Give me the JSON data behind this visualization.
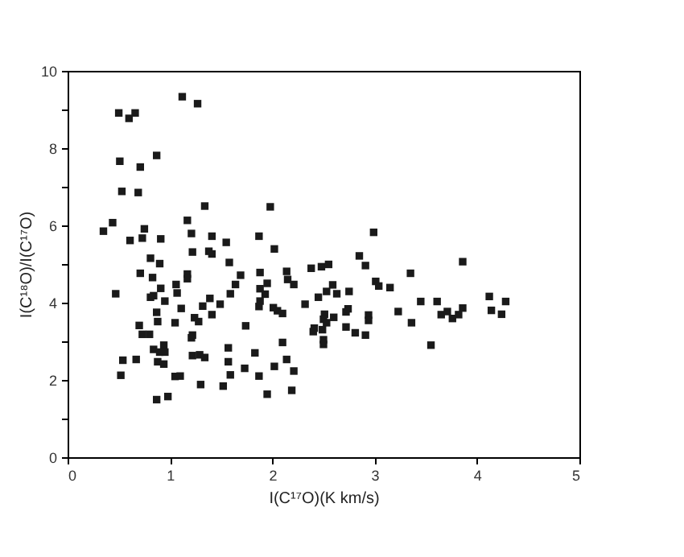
{
  "chart_data": {
    "type": "scatter",
    "xlabel": "I(C¹⁷O)(K km/s)",
    "ylabel": "I(C¹⁸O)/I(C¹⁷O)",
    "marker": "square",
    "grid": false,
    "legend": false,
    "xlim": [
      0,
      5
    ],
    "ylim": [
      0,
      10
    ],
    "xticks": [
      0,
      1,
      2,
      3,
      4,
      5
    ],
    "yticks": [
      0,
      {
        "value": 1,
        "label": null
      },
      2,
      {
        "value": 3,
        "label": null
      },
      4,
      {
        "value": 5,
        "label": null
      },
      6,
      {
        "value": 7,
        "label": null
      },
      8,
      {
        "value": 9,
        "label": null
      },
      10
    ],
    "series": [
      {
        "color": "#1a1a1a",
        "x": [
          0.5,
          0.6,
          0.66,
          1.12,
          1.27,
          0.51,
          0.71,
          0.87,
          0.53,
          0.69,
          1.34,
          0.35,
          0.44,
          0.75,
          0.61,
          0.73,
          0.91,
          1.17,
          1.21,
          1.41,
          1.22,
          1.38,
          1.41,
          1.55,
          1.58,
          0.81,
          0.9,
          0.71,
          0.83,
          1.17,
          1.17,
          1.06,
          0.91,
          1.07,
          0.47,
          0.84,
          0.81,
          0.95,
          1.39,
          1.32,
          1.49,
          1.59,
          1.64,
          1.69,
          1.11,
          0.87,
          0.88,
          1.41,
          1.24,
          1.28,
          1.05,
          0.7,
          0.73,
          0.8,
          1.21,
          1.22,
          1.57,
          0.84,
          0.94,
          0.9,
          0.95,
          0.88,
          0.94,
          0.54,
          0.67,
          1.22,
          1.29,
          1.34,
          1.57,
          0.52,
          1.05,
          1.1,
          1.59,
          1.3,
          1.52,
          0.87,
          0.98,
          1.98,
          1.87,
          2.02,
          1.88,
          1.95,
          1.88,
          1.93,
          1.88,
          1.87,
          2.01,
          2.05,
          2.1,
          2.14,
          2.15,
          2.21,
          2.32,
          2.38,
          2.48,
          2.55,
          2.45,
          2.53,
          2.59,
          2.63,
          2.75,
          2.85,
          2.91,
          2.99,
          3.01,
          3.04,
          3.15,
          3.23,
          2.51,
          2.5,
          2.53,
          2.6,
          2.72,
          2.74,
          2.72,
          2.41,
          2.4,
          2.49,
          2.81,
          2.91,
          2.94,
          2.94,
          2.5,
          2.5,
          1.74,
          2.1,
          1.83,
          2.14,
          1.73,
          2.02,
          1.87,
          2.21,
          1.95,
          2.19,
          3.35,
          3.45,
          3.36,
          3.55,
          3.61,
          3.65,
          3.71,
          3.76,
          3.82,
          3.86,
          3.86,
          4.12,
          4.14,
          4.24,
          4.28
        ],
        "values": [
          8.91,
          8.77,
          8.91,
          9.33,
          9.15,
          7.66,
          7.51,
          7.81,
          6.88,
          6.85,
          6.5,
          5.85,
          6.07,
          5.91,
          5.61,
          5.67,
          5.65,
          6.13,
          5.79,
          5.72,
          5.31,
          5.33,
          5.26,
          5.56,
          5.04,
          5.15,
          5.01,
          4.76,
          4.65,
          4.74,
          4.62,
          4.47,
          4.37,
          4.25,
          4.23,
          4.18,
          4.14,
          4.04,
          4.11,
          3.91,
          3.96,
          4.23,
          4.47,
          4.71,
          3.85,
          3.75,
          3.51,
          3.69,
          3.61,
          3.51,
          3.48,
          3.41,
          3.18,
          3.18,
          3.09,
          3.16,
          2.83,
          2.79,
          2.9,
          2.72,
          2.72,
          2.47,
          2.41,
          2.51,
          2.53,
          2.63,
          2.65,
          2.58,
          2.47,
          2.12,
          2.09,
          2.1,
          2.13,
          1.88,
          1.84,
          1.49,
          1.57,
          6.48,
          5.72,
          5.39,
          4.78,
          4.5,
          4.36,
          4.22,
          4.04,
          3.9,
          3.87,
          3.79,
          3.72,
          4.81,
          4.6,
          4.47,
          3.96,
          4.89,
          4.93,
          4.99,
          4.14,
          4.29,
          4.46,
          4.23,
          4.29,
          5.21,
          4.96,
          5.82,
          4.55,
          4.43,
          4.39,
          3.77,
          3.7,
          3.57,
          3.48,
          3.62,
          3.76,
          3.84,
          3.37,
          3.34,
          3.25,
          3.3,
          3.22,
          3.16,
          3.68,
          3.54,
          3.04,
          2.92,
          3.4,
          2.97,
          2.7,
          2.53,
          2.3,
          2.35,
          2.1,
          2.23,
          1.63,
          1.73,
          4.76,
          4.03,
          3.48,
          2.9,
          4.03,
          3.69,
          3.77,
          3.59,
          3.69,
          3.86,
          5.06,
          4.16,
          3.8,
          3.7,
          4.03
        ]
      }
    ]
  }
}
